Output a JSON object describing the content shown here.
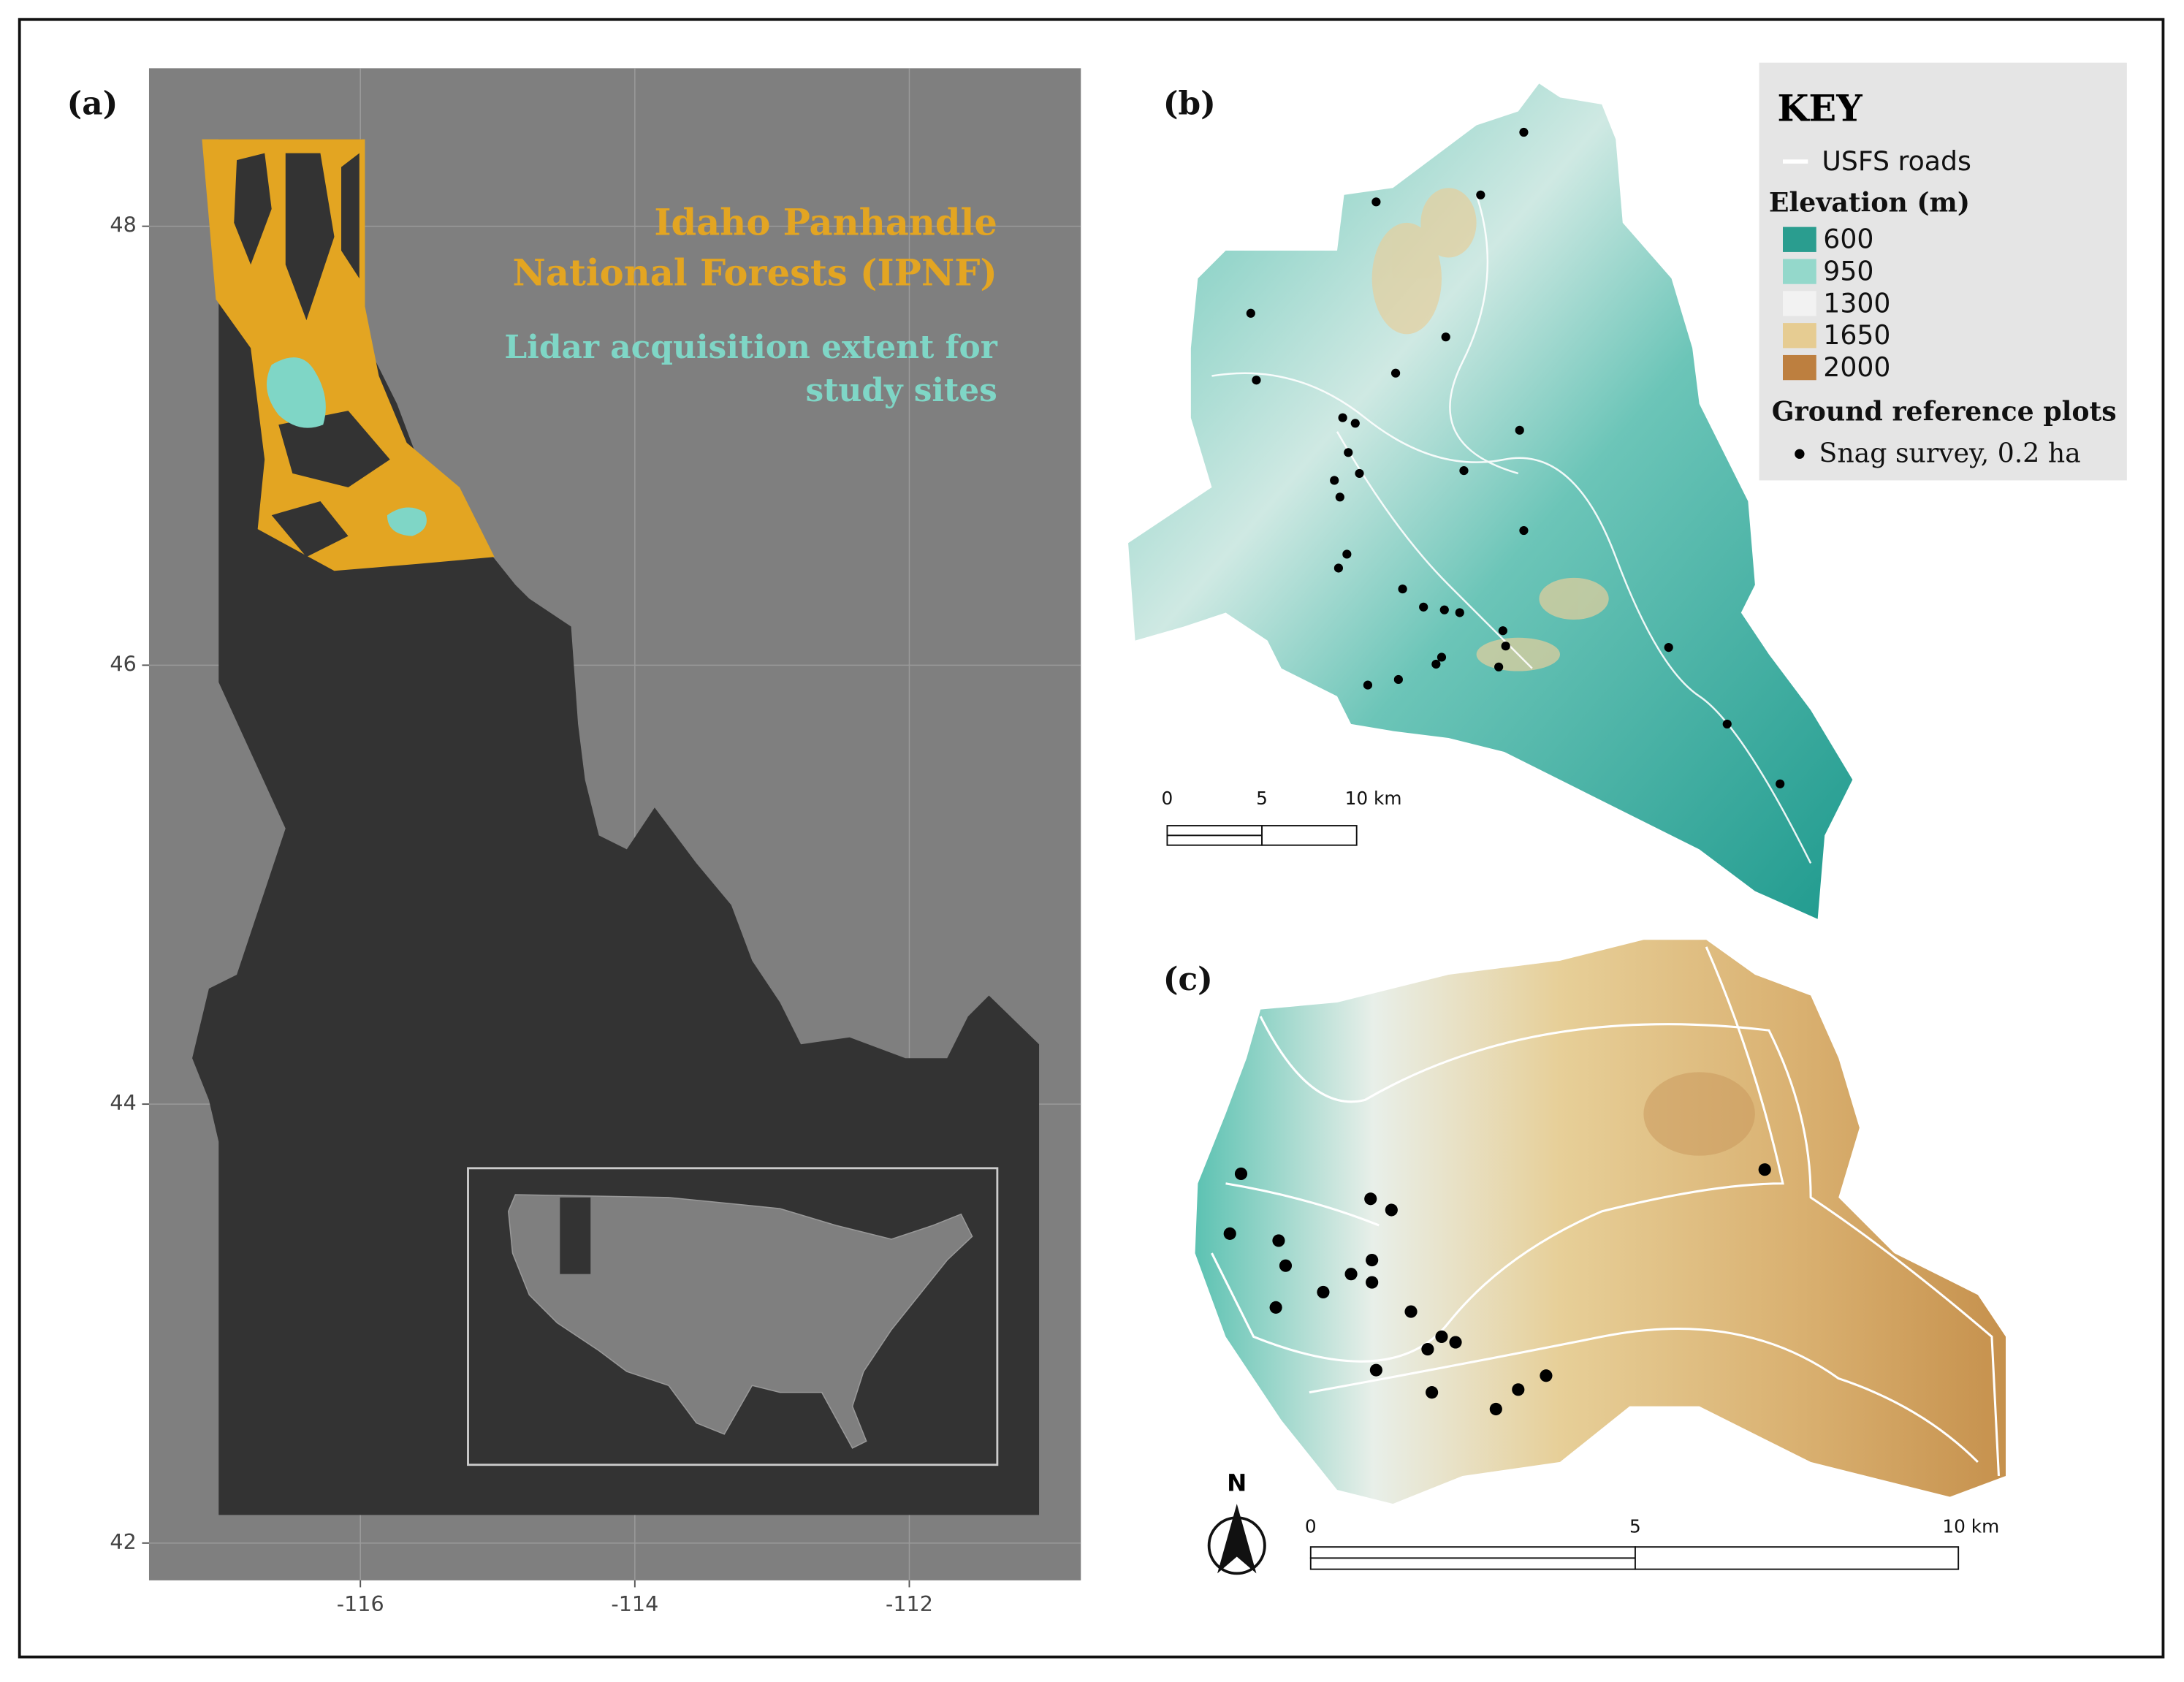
{
  "panel_a": {
    "label": "(a)",
    "xlim": [
      -117.54,
      -110.75
    ],
    "ylim": [
      41.83,
      48.72
    ],
    "xticks": [
      -116,
      -114,
      -112
    ],
    "yticks": [
      42,
      44,
      46,
      48
    ],
    "ipnf_label": [
      "Idaho Panhandle",
      "National Forests (IPNF)"
    ],
    "lidar_label": [
      "Lidar acquisition extent for",
      "study sites"
    ],
    "ipnf_color": "#e3a522",
    "lidar_color": "#7fd6c6"
  },
  "panel_b": {
    "label": "(b)",
    "scale_labels": [
      "0",
      "5",
      "10 km"
    ]
  },
  "panel_c": {
    "label": "(c)",
    "scale_labels": [
      "0",
      "5",
      "10 km"
    ],
    "north": "N"
  },
  "key": {
    "title": "KEY",
    "roads": "USFS roads",
    "elevation_title": "Elevation (m)",
    "elevation": [
      {
        "value": 600,
        "color": "#2a9d8f"
      },
      {
        "value": 950,
        "color": "#94d8cb"
      },
      {
        "value": 1300,
        "color": "#f2f2f2"
      },
      {
        "value": 1650,
        "color": "#e6cc92"
      },
      {
        "value": 2000,
        "color": "#bd7f3f"
      }
    ],
    "plots_title": "Ground reference plots",
    "plots": "Snag survey, 0.2 ha"
  }
}
